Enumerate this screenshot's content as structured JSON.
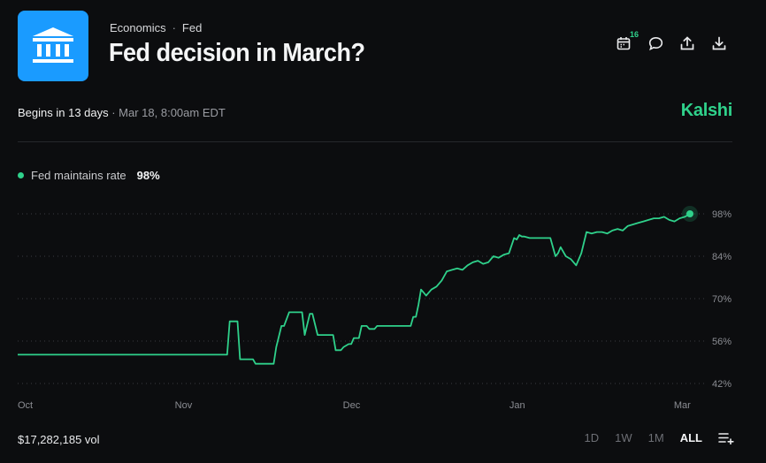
{
  "header": {
    "breadcrumb": [
      "Economics",
      "Fed"
    ],
    "breadcrumb_sep": "·",
    "title": "Fed decision in March?",
    "calendar_badge": "16",
    "icons": [
      "calendar-icon",
      "comment-icon",
      "share-icon",
      "download-icon"
    ]
  },
  "info": {
    "begins": "Begins in 13 days",
    "begins_detail": " · Mar 18, 8:00am EDT",
    "brand": "Kalshi"
  },
  "legend": {
    "label": "Fed maintains rate",
    "value": "98%"
  },
  "footer": {
    "volume": "$17,282,185 vol",
    "ranges": [
      "1D",
      "1W",
      "1M",
      "ALL"
    ],
    "active_range": "ALL"
  },
  "colors": {
    "accent": "#2fd18b",
    "logo_bg": "#1a9bff",
    "background": "#0c0d0f"
  },
  "chart_data": {
    "type": "line",
    "x_tick_labels": [
      "Oct",
      "Nov",
      "Dec",
      "Jan",
      "Mar"
    ],
    "x_tick_positions": [
      0,
      32.1,
      64.6,
      96.8,
      128.6
    ],
    "y_ticks": [
      42,
      56,
      70,
      84,
      98
    ],
    "y_tick_labels": [
      "42%",
      "56%",
      "70%",
      "84%",
      "98%"
    ],
    "ylim": [
      42,
      98
    ],
    "xlim": [
      0,
      130
    ],
    "grid": true,
    "series": [
      {
        "name": "Fed maintains rate",
        "x": [
          0,
          40.5,
          41,
          42.5,
          43,
          45.5,
          46,
          49.5,
          50,
          51,
          51.5,
          52.5,
          53,
          55,
          55.5,
          56.5,
          57,
          58,
          58.5,
          61,
          61.5,
          62.5,
          63,
          64,
          64.5,
          65,
          66,
          66.5,
          67.5,
          68,
          69,
          69.5,
          72,
          72.5,
          76,
          76.5,
          77,
          77.5,
          78,
          78.5,
          79,
          80,
          81,
          82,
          83,
          84,
          85,
          86,
          87,
          88,
          89,
          90,
          91,
          92,
          93,
          94,
          95,
          96,
          96.5,
          97,
          97.5,
          98,
          99,
          100,
          101,
          102,
          103,
          104,
          104.5,
          105,
          106,
          107,
          108,
          109,
          110,
          111,
          112,
          113,
          114,
          115,
          116,
          117,
          118,
          119,
          120,
          121,
          122,
          123,
          124,
          125,
          126,
          127,
          128,
          129,
          130
        ],
        "y": [
          51.5,
          51.5,
          62.5,
          62.5,
          50,
          50,
          48.5,
          48.5,
          54,
          61,
          61,
          65.5,
          65.5,
          65.5,
          58,
          65,
          65,
          58,
          58,
          58,
          53,
          53,
          54,
          55,
          55,
          57,
          57,
          61,
          61,
          60,
          60,
          61,
          61,
          61,
          61,
          64,
          64,
          68,
          73,
          72,
          71,
          73,
          74,
          76,
          79,
          79.5,
          80,
          79.5,
          81,
          82,
          82.5,
          81.5,
          82,
          84,
          83.5,
          84.5,
          85,
          90,
          89.5,
          91,
          90.5,
          90.5,
          90,
          90,
          90,
          90,
          90,
          84,
          85,
          87,
          84,
          83,
          81,
          85,
          92,
          91.5,
          92,
          92,
          91.5,
          92.5,
          93,
          92.5,
          94,
          94.5,
          95,
          95.5,
          96,
          96.5,
          96.5,
          97,
          96,
          95.5,
          96.5,
          97,
          98
        ]
      }
    ]
  }
}
